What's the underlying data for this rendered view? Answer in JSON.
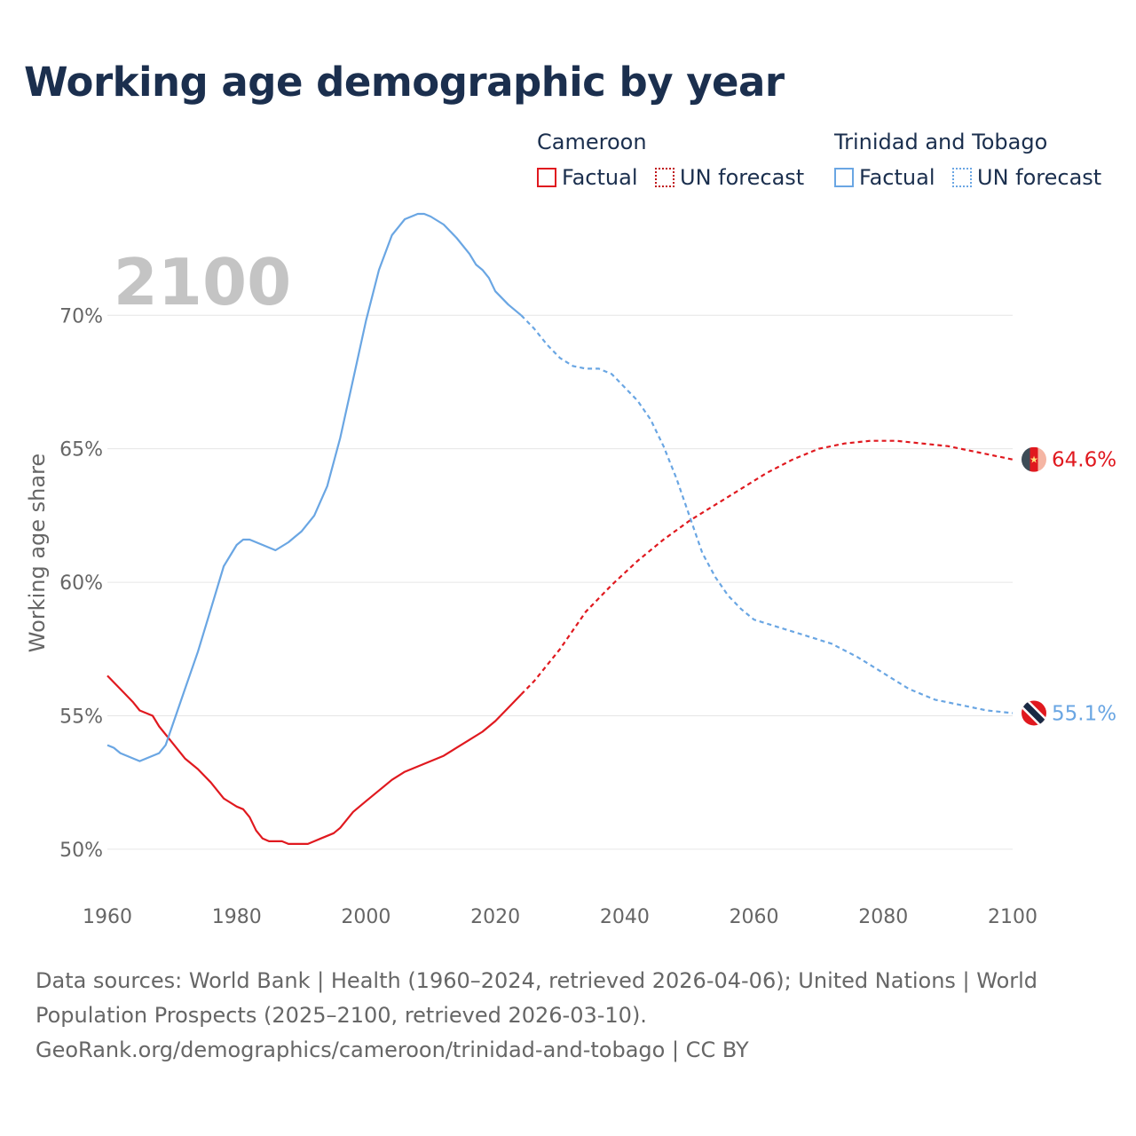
{
  "title": "Working age demographic by year",
  "legend": {
    "groups": [
      {
        "name": "Cameroon",
        "factual": "Factual",
        "forecast": "UN forecast",
        "color": "#e0191f"
      },
      {
        "name": "Trinidad and Tobago",
        "factual": "Factual",
        "forecast": "UN forecast",
        "color": "#6aa6e3"
      }
    ]
  },
  "year_label": "2100",
  "footer": {
    "line1": "Data sources: World Bank | Health (1960–2024, retrieved 2026-04-06); United Nations | World",
    "line2": "Population Prospects (2025–2100, retrieved 2026-03-10).",
    "line3": "GeoRank.org/demographics/cameroon/trinidad-and-tobago | CC BY"
  },
  "chart_data": {
    "type": "line",
    "title": "Working age demographic by year",
    "xlabel": "",
    "ylabel": "Working age share",
    "xlim": [
      1960,
      2100
    ],
    "ylim": [
      48.5,
      73.5
    ],
    "x_ticks": [
      "1960",
      "1980",
      "2000",
      "2020",
      "2040",
      "2060",
      "2080",
      "2100"
    ],
    "x_tick_values": [
      1960,
      1980,
      2000,
      2020,
      2040,
      2060,
      2080,
      2100
    ],
    "y_ticks": [
      "50%",
      "55%",
      "60%",
      "65%",
      "70%"
    ],
    "y_tick_values": [
      50,
      55,
      60,
      65,
      70
    ],
    "grid": true,
    "series": [
      {
        "name": "Cameroon",
        "color": "#e0191f",
        "end_label": "64.6%",
        "factual": {
          "x": [
            1960,
            1962,
            1964,
            1965,
            1967,
            1968,
            1970,
            1972,
            1974,
            1976,
            1978,
            1980,
            1981,
            1982,
            1983,
            1984,
            1985,
            1986,
            1987,
            1988,
            1990,
            1991,
            1992,
            1993,
            1995,
            1996,
            1998,
            2000,
            2002,
            2004,
            2006,
            2008,
            2010,
            2012,
            2014,
            2016,
            2018,
            2020,
            2022,
            2024
          ],
          "y": [
            56.5,
            56.0,
            55.5,
            55.2,
            55.0,
            54.6,
            54.0,
            53.4,
            53.0,
            52.5,
            51.9,
            51.6,
            51.5,
            51.2,
            50.7,
            50.4,
            50.3,
            50.3,
            50.3,
            50.2,
            50.2,
            50.2,
            50.3,
            50.4,
            50.6,
            50.8,
            51.4,
            51.8,
            52.2,
            52.6,
            52.9,
            53.1,
            53.3,
            53.5,
            53.8,
            54.1,
            54.4,
            54.8,
            55.3,
            55.8
          ]
        },
        "forecast": {
          "x": [
            2024,
            2026,
            2030,
            2034,
            2038,
            2042,
            2046,
            2050,
            2054,
            2058,
            2062,
            2066,
            2070,
            2074,
            2078,
            2082,
            2086,
            2090,
            2094,
            2098,
            2100
          ],
          "y": [
            55.8,
            56.3,
            57.5,
            58.9,
            59.9,
            60.8,
            61.6,
            62.3,
            62.9,
            63.5,
            64.1,
            64.6,
            65.0,
            65.2,
            65.3,
            65.3,
            65.2,
            65.1,
            64.9,
            64.7,
            64.6
          ]
        }
      },
      {
        "name": "Trinidad and Tobago",
        "color": "#6aa6e3",
        "end_label": "55.1%",
        "factual": {
          "x": [
            1960,
            1961,
            1962,
            1964,
            1965,
            1967,
            1968,
            1969,
            1970,
            1972,
            1974,
            1976,
            1978,
            1979,
            1980,
            1981,
            1982,
            1984,
            1986,
            1988,
            1989,
            1990,
            1992,
            1994,
            1996,
            1998,
            2000,
            2002,
            2004,
            2006,
            2008,
            2009,
            2010,
            2012,
            2014,
            2016,
            2017,
            2018,
            2019,
            2020,
            2022,
            2024
          ],
          "y": [
            53.9,
            53.8,
            53.6,
            53.4,
            53.3,
            53.5,
            53.6,
            53.9,
            54.6,
            56.0,
            57.4,
            59.0,
            60.6,
            61.0,
            61.4,
            61.6,
            61.6,
            61.4,
            61.2,
            61.5,
            61.7,
            61.9,
            62.5,
            63.6,
            65.4,
            67.6,
            69.8,
            71.7,
            73.0,
            73.6,
            73.8,
            73.8,
            73.7,
            73.4,
            72.9,
            72.3,
            71.9,
            71.7,
            71.4,
            70.9,
            70.4,
            70.0
          ]
        },
        "forecast": {
          "x": [
            2024,
            2026,
            2028,
            2030,
            2032,
            2034,
            2036,
            2038,
            2040,
            2042,
            2044,
            2046,
            2048,
            2050,
            2052,
            2054,
            2056,
            2058,
            2060,
            2064,
            2068,
            2072,
            2076,
            2080,
            2084,
            2088,
            2092,
            2096,
            2100
          ],
          "y": [
            70.0,
            69.5,
            68.9,
            68.4,
            68.1,
            68.0,
            68.0,
            67.8,
            67.3,
            66.8,
            66.1,
            65.1,
            63.9,
            62.5,
            61.1,
            60.2,
            59.5,
            59.0,
            58.6,
            58.3,
            58.0,
            57.7,
            57.2,
            56.6,
            56.0,
            55.6,
            55.4,
            55.2,
            55.1
          ]
        }
      }
    ]
  }
}
